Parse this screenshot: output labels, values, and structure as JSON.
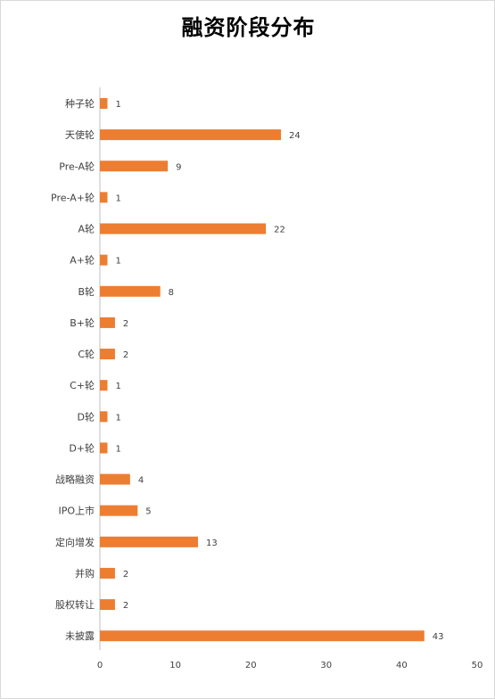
{
  "chart_data": {
    "type": "bar",
    "orientation": "horizontal",
    "title": "融资阶段分布",
    "categories": [
      "种子轮",
      "天使轮",
      "Pre-A轮",
      "Pre-A+轮",
      "A轮",
      "A+轮",
      "B轮",
      "B+轮",
      "C轮",
      "C+轮",
      "D轮",
      "D+轮",
      "战略融资",
      "IPO上市",
      "定向增发",
      "并购",
      "股权转让",
      "未披露"
    ],
    "values": [
      1,
      24,
      9,
      1,
      22,
      1,
      8,
      2,
      2,
      1,
      1,
      1,
      4,
      5,
      13,
      2,
      2,
      43
    ],
    "xlim": [
      0,
      50
    ],
    "xticks": [
      0,
      10,
      20,
      30,
      40,
      50
    ],
    "xlabel": "",
    "ylabel": "",
    "grid": false,
    "data_labels": true,
    "legend": "none",
    "bar_color": "#ED7D31"
  }
}
